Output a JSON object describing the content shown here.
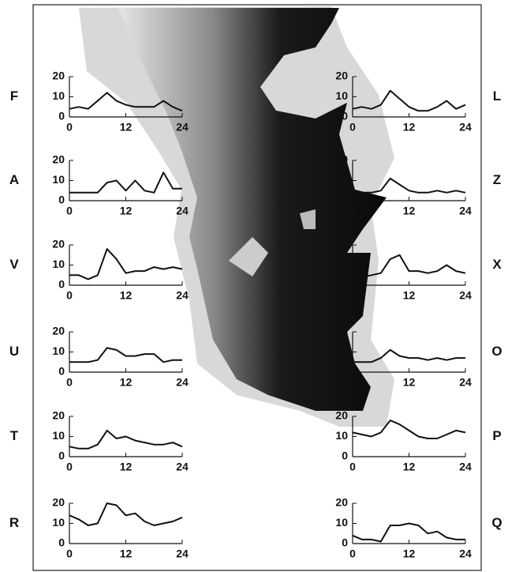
{
  "chart_data": [
    {
      "type": "line",
      "title": "F",
      "x": [
        0,
        2,
        4,
        6,
        8,
        10,
        12,
        14,
        16,
        18,
        20,
        22,
        24
      ],
      "values": [
        4,
        5,
        4,
        8,
        12,
        8,
        6,
        5,
        5,
        5,
        8,
        5,
        3
      ],
      "color": "#111111",
      "xlim": [
        0,
        24
      ],
      "ylim": [
        0,
        20
      ],
      "xticks": [
        0,
        12,
        24
      ],
      "yticks": [
        0,
        10,
        20
      ],
      "side": "left"
    },
    {
      "type": "line",
      "title": "A",
      "x": [
        0,
        2,
        4,
        6,
        8,
        10,
        12,
        14,
        16,
        18,
        20,
        22,
        24
      ],
      "values": [
        4,
        4,
        4,
        4,
        9,
        10,
        5,
        10,
        5,
        4,
        14,
        6,
        6
      ],
      "color": "#111111",
      "xlim": [
        0,
        24
      ],
      "ylim": [
        0,
        20
      ],
      "xticks": [
        0,
        12,
        24
      ],
      "yticks": [
        0,
        10,
        20
      ],
      "side": "left"
    },
    {
      "type": "line",
      "title": "V",
      "x": [
        0,
        2,
        4,
        6,
        8,
        10,
        12,
        14,
        16,
        18,
        20,
        22,
        24
      ],
      "values": [
        5,
        5,
        3,
        5,
        18,
        13,
        6,
        7,
        7,
        9,
        8,
        9,
        8
      ],
      "color": "#111111",
      "xlim": [
        0,
        24
      ],
      "ylim": [
        0,
        20
      ],
      "xticks": [
        0,
        12,
        24
      ],
      "yticks": [
        0,
        10,
        20
      ],
      "side": "left"
    },
    {
      "type": "line",
      "title": "U",
      "x": [
        0,
        2,
        4,
        6,
        8,
        10,
        12,
        14,
        16,
        18,
        20,
        22,
        24
      ],
      "values": [
        5,
        5,
        5,
        6,
        12,
        11,
        8,
        8,
        9,
        9,
        5,
        6,
        6
      ],
      "color": "#111111",
      "xlim": [
        0,
        24
      ],
      "ylim": [
        0,
        20
      ],
      "xticks": [
        0,
        12,
        24
      ],
      "yticks": [
        0,
        10,
        20
      ],
      "side": "left"
    },
    {
      "type": "line",
      "title": "T",
      "x": [
        0,
        2,
        4,
        6,
        8,
        10,
        12,
        14,
        16,
        18,
        20,
        22,
        24
      ],
      "values": [
        5,
        4,
        4,
        6,
        13,
        9,
        10,
        8,
        7,
        6,
        6,
        7,
        5
      ],
      "color": "#111111",
      "xlim": [
        0,
        24
      ],
      "ylim": [
        0,
        20
      ],
      "xticks": [
        0,
        12,
        24
      ],
      "yticks": [
        0,
        10,
        20
      ],
      "side": "left"
    },
    {
      "type": "line",
      "title": "R",
      "x": [
        0,
        2,
        4,
        6,
        8,
        10,
        12,
        14,
        16,
        18,
        20,
        22,
        24
      ],
      "values": [
        14,
        12,
        9,
        10,
        20,
        19,
        14,
        15,
        11,
        9,
        10,
        11,
        13
      ],
      "color": "#111111",
      "xlim": [
        0,
        24
      ],
      "ylim": [
        0,
        20
      ],
      "xticks": [
        0,
        12,
        24
      ],
      "yticks": [
        0,
        10,
        20
      ],
      "side": "left"
    },
    {
      "type": "line",
      "title": "L",
      "x": [
        0,
        2,
        4,
        6,
        8,
        10,
        12,
        14,
        16,
        18,
        20,
        22,
        24
      ],
      "values": [
        4,
        5,
        4,
        6,
        13,
        9,
        5,
        3,
        3,
        5,
        8,
        4,
        6
      ],
      "color": "#111111",
      "xlim": [
        0,
        24
      ],
      "ylim": [
        0,
        20
      ],
      "xticks": [
        0,
        12,
        24
      ],
      "yticks": [
        0,
        10,
        20
      ],
      "side": "right"
    },
    {
      "type": "line",
      "title": "Z",
      "x": [
        0,
        2,
        4,
        6,
        8,
        10,
        12,
        14,
        16,
        18,
        20,
        22,
        24
      ],
      "values": [
        4,
        4,
        4,
        5,
        11,
        8,
        5,
        4,
        4,
        5,
        4,
        5,
        4
      ],
      "color": "#111111",
      "xlim": [
        0,
        24
      ],
      "ylim": [
        0,
        20
      ],
      "xticks": [
        0,
        12,
        24
      ],
      "yticks": [
        0,
        10,
        20
      ],
      "side": "right"
    },
    {
      "type": "line",
      "title": "X",
      "x": [
        0,
        2,
        4,
        6,
        8,
        10,
        12,
        14,
        16,
        18,
        20,
        22,
        24
      ],
      "values": [
        5,
        4,
        5,
        6,
        13,
        15,
        7,
        7,
        6,
        7,
        10,
        7,
        6
      ],
      "color": "#111111",
      "xlim": [
        0,
        24
      ],
      "ylim": [
        0,
        20
      ],
      "xticks": [
        0,
        12,
        24
      ],
      "yticks": [
        0,
        10,
        20
      ],
      "side": "right"
    },
    {
      "type": "line",
      "title": "O",
      "x": [
        0,
        2,
        4,
        6,
        8,
        10,
        12,
        14,
        16,
        18,
        20,
        22,
        24
      ],
      "values": [
        5,
        5,
        5,
        7,
        11,
        8,
        7,
        7,
        6,
        7,
        6,
        7,
        7
      ],
      "color": "#111111",
      "xlim": [
        0,
        24
      ],
      "ylim": [
        0,
        20
      ],
      "xticks": [
        0,
        12,
        24
      ],
      "yticks": [
        0,
        10,
        20
      ],
      "side": "right"
    },
    {
      "type": "line",
      "title": "P",
      "x": [
        0,
        2,
        4,
        6,
        8,
        10,
        12,
        14,
        16,
        18,
        20,
        22,
        24
      ],
      "values": [
        12,
        11,
        10,
        12,
        18,
        16,
        13,
        10,
        9,
        9,
        11,
        13,
        12
      ],
      "color": "#111111",
      "xlim": [
        0,
        24
      ],
      "ylim": [
        0,
        20
      ],
      "xticks": [
        0,
        12,
        24
      ],
      "yticks": [
        0,
        10,
        20
      ],
      "side": "right"
    },
    {
      "type": "line",
      "title": "Q",
      "x": [
        0,
        2,
        4,
        6,
        8,
        10,
        12,
        14,
        16,
        18,
        20,
        22,
        24
      ],
      "values": [
        4,
        2,
        2,
        1,
        9,
        9,
        10,
        9,
        5,
        6,
        3,
        2,
        2
      ],
      "color": "#111111",
      "xlim": [
        0,
        24
      ],
      "ylim": [
        0,
        20
      ],
      "xticks": [
        0,
        12,
        24
      ],
      "yticks": [
        0,
        10,
        20
      ],
      "side": "right"
    }
  ]
}
